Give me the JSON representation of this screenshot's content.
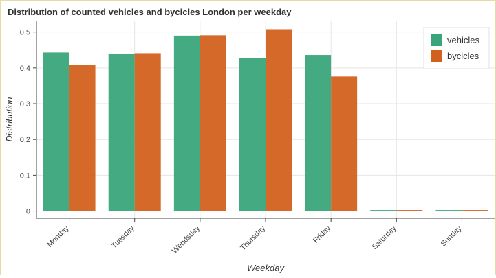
{
  "chart_data": {
    "type": "bar",
    "title": "Distribution of counted vehicles and bycicles London per weekday",
    "xlabel": "Weekday",
    "ylabel": "Distribution",
    "categories": [
      "Monday",
      "Tuesday",
      "Wendsday",
      "Thursday",
      "Friday",
      "Saturday",
      "Sunday"
    ],
    "series": [
      {
        "name": "vehicles",
        "color": "#3aa57a",
        "values": [
          0.443,
          0.44,
          0.49,
          0.427,
          0.436,
          0.0,
          0.0
        ]
      },
      {
        "name": "bycicles",
        "color": "#d2611f",
        "values": [
          0.409,
          0.441,
          0.491,
          0.508,
          0.376,
          0.0,
          0.0
        ]
      }
    ],
    "yticks": [
      "0",
      "0.1",
      "0.2",
      "0.3",
      "0.4",
      "0.5"
    ],
    "ylim": [
      -0.02,
      0.53
    ],
    "grid": true,
    "legend_position": "top-right"
  }
}
